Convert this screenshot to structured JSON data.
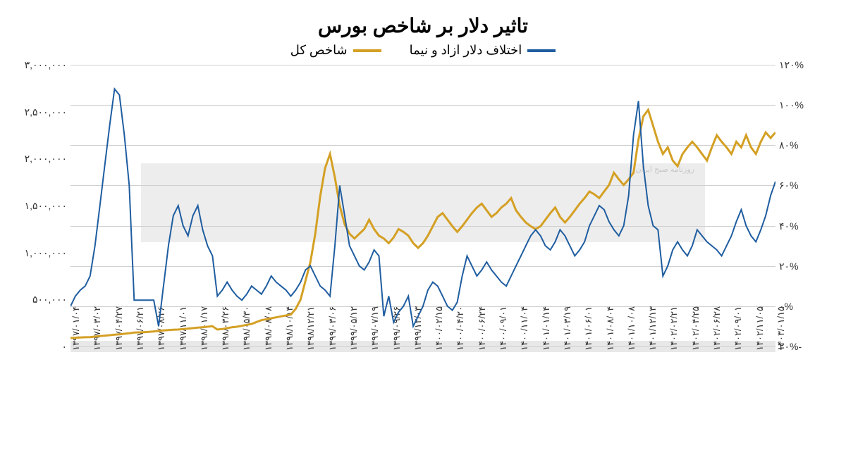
{
  "title": "تاثیر دلار بر شاخص بورس",
  "legend": {
    "series1": {
      "label": "اختلاف دلار ازاد و نیما",
      "color": "#1f5da0"
    },
    "series2": {
      "label": "شاخص کل",
      "color": "#d4a024"
    }
  },
  "watermark": {
    "text": "اقتصاد",
    "subtext": "روزنامه صبح ایران"
  },
  "chart": {
    "type": "line",
    "background_color": "#ffffff",
    "grid_color": "#d0d0d0",
    "line_width": 2,
    "y_left": {
      "min": 0,
      "max": 3000000,
      "step": 500000,
      "ticks": [
        "۰",
        "۵۰۰,۰۰۰",
        "۱,۰۰۰,۰۰۰",
        "۱,۵۰۰,۰۰۰",
        "۲,۰۰۰,۰۰۰",
        "۲,۵۰۰,۰۰۰",
        "۳,۰۰۰,۰۰۰"
      ]
    },
    "y_right": {
      "min": -20,
      "max": 120,
      "step": 20,
      "ticks": [
        "-۲۰%",
        "۰%",
        "۲۰%",
        "۴۰%",
        "۶۰%",
        "۸۰%",
        "۱۰۰%",
        "۱۲۰%"
      ]
    },
    "x_labels": [
      "۱۳۹۷/۰۱/۰۴",
      "۱۳۹۷/۰۳/۰۲",
      "۱۳۹۷/۰۴/۲۷",
      "۱۳۹۷/۰۶/۲۱",
      "۱۳۹۷/۰۸/۲۶",
      "۱۳۹۷/۱۱/۰۱",
      "۱۳۹۸/۰۱/۱۷",
      "۱۳۹۸/۰۳/۲۶",
      "۱۳۹۸/۰۵/۳۰",
      "۱۳۹۸/۰۸/۰۸",
      "۱۳۹۸/۱۰/۱۴",
      "۱۳۹۸/۱۲/۲۱",
      "۱۳۹۹/۰۳/۰۶",
      "۱۳۹۹/۰۵/۱۲",
      "۱۳۹۹/۰۷/۱۹",
      "۱۳۹۹/۰۹/۲۶",
      "۱۳۹۹/۱۲/۰۳",
      "۱۴۰۰/۰۲/۱۵",
      "۱۴۰۰/۰۴/۲۰",
      "۱۴۰۰/۰۶/۲۴",
      "۱۴۰۰/۰۹/۰۱",
      "۱۴۰۰/۱۱/۰۴",
      "۱۴۰۱/۰۱/۱۴",
      "۱۴۰۱/۰۳/۱۹",
      "۱۴۰۱/۰۶/۰۱",
      "۱۴۰۱/۰۸/۰۴",
      "۱۴۰۱/۱۰/۰۸",
      "۱۴۰۱/۱۲/۱۳",
      "۱۴۰۲/۰۲/۲۱",
      "۱۴۰۲/۰۴/۲۵",
      "۱۴۰۲/۰۶/۲۸",
      "۱۴۰۲/۰۹/۰۱",
      "۱۴۰۲/۱۱/۰۵",
      "۱۴۰۳/۰۱/۱۵"
    ],
    "series_blue_pct": [
      0,
      5,
      8,
      10,
      15,
      30,
      50,
      70,
      90,
      108,
      105,
      85,
      60,
      3,
      3,
      3,
      3,
      3,
      -10,
      10,
      30,
      45,
      50,
      40,
      35,
      45,
      50,
      38,
      30,
      25,
      5,
      8,
      12,
      8,
      5,
      3,
      6,
      10,
      8,
      6,
      10,
      15,
      12,
      10,
      8,
      5,
      8,
      12,
      18,
      20,
      15,
      10,
      8,
      5,
      30,
      60,
      45,
      30,
      25,
      20,
      18,
      22,
      28,
      25,
      -5,
      5,
      -8,
      -3,
      0,
      5,
      -10,
      -5,
      0,
      8,
      12,
      10,
      5,
      0,
      -2,
      2,
      15,
      25,
      20,
      15,
      18,
      22,
      18,
      15,
      12,
      10,
      15,
      20,
      25,
      30,
      35,
      38,
      35,
      30,
      28,
      32,
      38,
      35,
      30,
      25,
      28,
      32,
      40,
      45,
      50,
      48,
      42,
      38,
      35,
      40,
      55,
      85,
      102,
      70,
      50,
      40,
      38,
      15,
      20,
      28,
      32,
      28,
      25,
      30,
      38,
      35,
      32,
      30,
      28,
      25,
      30,
      35,
      42,
      48,
      40,
      35,
      32,
      38,
      45,
      55,
      62
    ],
    "series_yellow_val": [
      90000,
      92000,
      95000,
      98000,
      100000,
      105000,
      110000,
      115000,
      120000,
      125000,
      130000,
      135000,
      140000,
      148000,
      150000,
      152000,
      155000,
      160000,
      165000,
      170000,
      175000,
      178000,
      180000,
      185000,
      190000,
      195000,
      200000,
      205000,
      210000,
      215000,
      180000,
      185000,
      195000,
      205000,
      210000,
      220000,
      230000,
      240000,
      260000,
      280000,
      290000,
      300000,
      310000,
      320000,
      330000,
      340000,
      400000,
      500000,
      700000,
      900000,
      1200000,
      1600000,
      1900000,
      2050000,
      1800000,
      1500000,
      1300000,
      1200000,
      1150000,
      1200000,
      1250000,
      1350000,
      1250000,
      1180000,
      1150000,
      1100000,
      1160000,
      1250000,
      1220000,
      1180000,
      1100000,
      1050000,
      1100000,
      1180000,
      1280000,
      1380000,
      1420000,
      1350000,
      1280000,
      1220000,
      1280000,
      1350000,
      1420000,
      1480000,
      1520000,
      1450000,
      1380000,
      1420000,
      1480000,
      1520000,
      1580000,
      1450000,
      1380000,
      1320000,
      1280000,
      1250000,
      1280000,
      1350000,
      1420000,
      1480000,
      1380000,
      1320000,
      1380000,
      1450000,
      1520000,
      1580000,
      1650000,
      1620000,
      1580000,
      1650000,
      1720000,
      1850000,
      1780000,
      1720000,
      1780000,
      1850000,
      2200000,
      2450000,
      2520000,
      2350000,
      2180000,
      2050000,
      2120000,
      1980000,
      1920000,
      2050000,
      2120000,
      2180000,
      2120000,
      2050000,
      1980000,
      2120000,
      2250000,
      2180000,
      2120000,
      2050000,
      2180000,
      2120000,
      2250000,
      2120000,
      2050000,
      2180000,
      2280000,
      2220000,
      2280000
    ]
  }
}
